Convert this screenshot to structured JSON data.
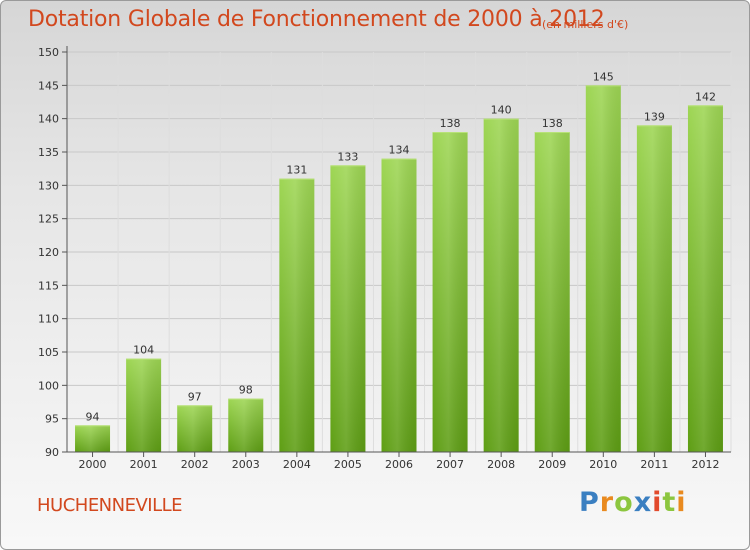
{
  "chart_data": {
    "type": "bar",
    "title": "Dotation Globale de Fonctionnement de 2000 à 2012",
    "subtitle": "(en milliers d'€)",
    "xlabel": "",
    "ylabel": "",
    "categories": [
      "2000",
      "2001",
      "2002",
      "2003",
      "2004",
      "2005",
      "2006",
      "2007",
      "2008",
      "2009",
      "2010",
      "2011",
      "2012"
    ],
    "values": [
      94,
      104,
      97,
      98,
      131,
      133,
      134,
      138,
      140,
      138,
      145,
      139,
      142
    ],
    "ylim": [
      90,
      150
    ],
    "yticks": [
      90,
      95,
      100,
      105,
      110,
      115,
      120,
      125,
      130,
      135,
      140,
      145,
      150
    ],
    "grid": true,
    "bar_color": "#7bbf2a",
    "legend": "none"
  },
  "commune_name": "HUCHENNEVILLE",
  "logo": {
    "letters": [
      "P",
      "r",
      "o",
      "x",
      "i",
      "t",
      "i"
    ],
    "colors": [
      "#3a7fc1",
      "#e98a1f",
      "#8cc63f",
      "#3a7fc1",
      "#e24a2c",
      "#8cc63f",
      "#e98a1f"
    ]
  },
  "colors": {
    "title": "#d2481e",
    "gridline": "#c8c8c8"
  }
}
